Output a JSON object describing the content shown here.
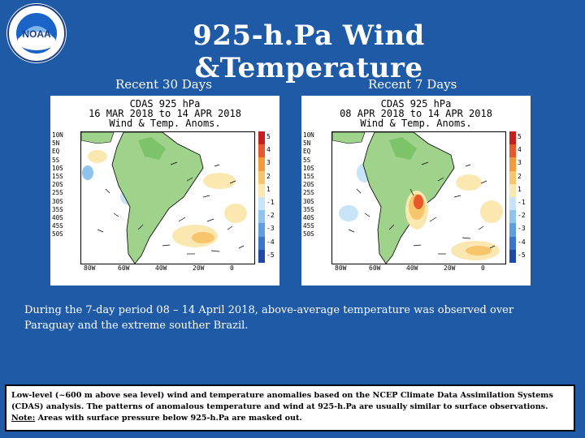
{
  "logo": {
    "text": "NOAA"
  },
  "title": "925-h.Pa Wind &Temperature",
  "panels": [
    {
      "subtitle": "Recent 30 Days",
      "header1": "CDAS 925 hPa",
      "header2": "16 MAR 2018 to 14 APR 2018",
      "header3": "Wind & Temp. Anoms."
    },
    {
      "subtitle": "Recent 7 Days",
      "header1": "CDAS 925 hPa",
      "header2": "08 APR 2018 to 14 APR 2018",
      "header3": "Wind & Temp. Anoms."
    }
  ],
  "map_axes": {
    "lat_labels": [
      "10N",
      "5N",
      "EQ",
      "5S",
      "10S",
      "15S",
      "20S",
      "25S",
      "30S",
      "35S",
      "40S",
      "45S",
      "50S"
    ],
    "lon_labels": [
      "80W",
      "60W",
      "40W",
      "20W",
      "0"
    ],
    "colorbar_labels": [
      "5",
      "4",
      "3",
      "2",
      "1",
      "-1",
      "-2",
      "-3",
      "-4",
      "-5"
    ],
    "colorbar_colors": [
      "#c81e1e",
      "#e8582a",
      "#f29a3c",
      "#f7c66c",
      "#fbe8b0",
      "#c8e4f8",
      "#8fc4ee",
      "#5e9ee0",
      "#3a74cc",
      "#2148a8"
    ]
  },
  "description": "During the 7-day period 08 – 14 April 2018, above-average temperature was observed over Paraguay and the extreme souther Brazil.",
  "note": {
    "line1": "Low-level (~600 m above sea level) wind and temperature anomalies based on the NCEP Climate Data Assimilation Systems",
    "line2": "(CDAS) analysis. The patterns of anomalous temperature and wind at 925-h.Pa are usually similar to surface observations.",
    "note_label": "Note:",
    "line3": " Areas with surface pressure below 925-h.Pa are masked out."
  }
}
